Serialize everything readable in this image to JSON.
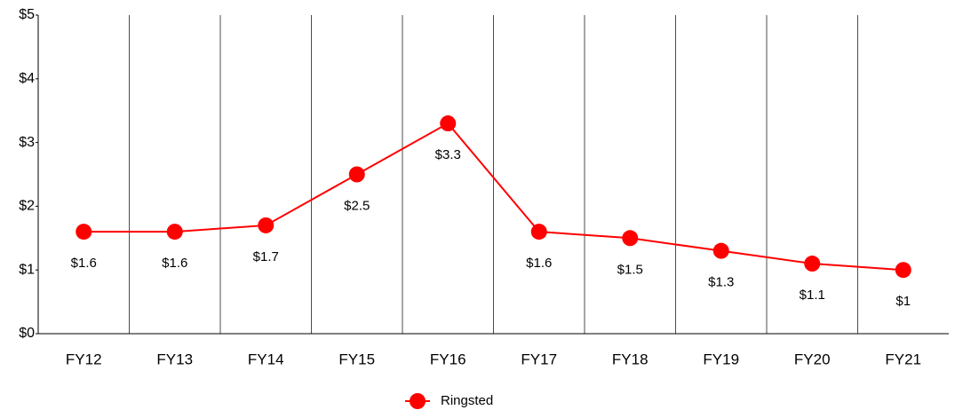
{
  "chart_data": {
    "type": "line",
    "categories": [
      "FY12",
      "FY13",
      "FY14",
      "FY15",
      "FY16",
      "FY17",
      "FY18",
      "FY19",
      "FY20",
      "FY21"
    ],
    "series": [
      {
        "name": "Ringsted",
        "color": "#ff0000",
        "values": [
          1.6,
          1.6,
          1.7,
          2.5,
          3.3,
          1.6,
          1.5,
          1.3,
          1.1,
          1
        ],
        "value_labels": [
          "$1.6",
          "$1.6",
          "$1.7",
          "$2.5",
          "$3.3",
          "$1.6",
          "$1.5",
          "$1.3",
          "$1.1",
          "$1"
        ]
      }
    ],
    "ylim": [
      0,
      5
    ],
    "yticks": [
      {
        "value": 0,
        "label": "$0"
      },
      {
        "value": 1,
        "label": "$1"
      },
      {
        "value": 2,
        "label": "$2"
      },
      {
        "value": 3,
        "label": "$3"
      },
      {
        "value": 4,
        "label": "$4"
      },
      {
        "value": 5,
        "label": "$5"
      }
    ],
    "legend": "bottom"
  }
}
